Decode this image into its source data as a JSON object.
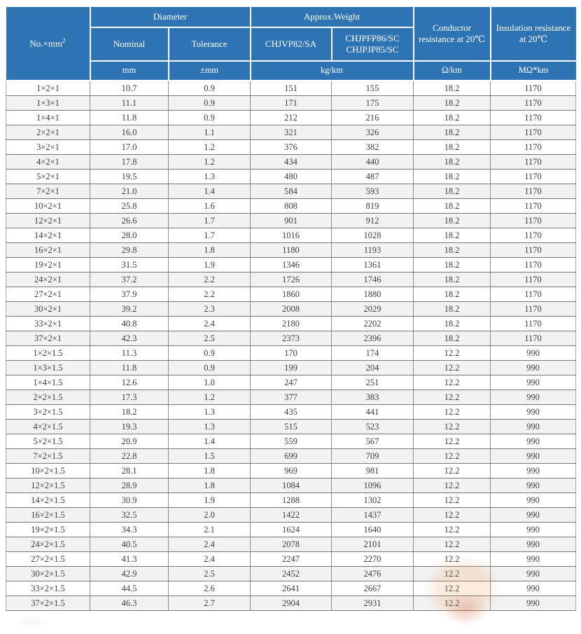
{
  "colors": {
    "header_bg": "#2e74b5",
    "header_text": "#ffffff",
    "stripe": "#f2f2f2",
    "grid": "#8b8b8b",
    "header_rule": "#1e5fa3",
    "text": "#3d3d3d"
  },
  "table": {
    "header": {
      "col0_base": "No.×mm",
      "col0_sup": "2",
      "diameter_group": "Diameter",
      "weight_group": "Approx.Weight",
      "conductor": "Conductor resistance at 20℃",
      "insulation": "Insulation resistance at 20℃",
      "nominal": "Nominal",
      "tolerance": "Tolerance",
      "model1": "CHJVP82/SA",
      "model2_line1": "CHJPFP86/SC",
      "model2_line2": "CHJPJP85/SC"
    },
    "units": {
      "nominal": "mm",
      "tolerance": "±mm",
      "weight": "kg/km",
      "conductor": "Ω/km",
      "insulation": "MΩ*km"
    },
    "rows": [
      {
        "size": "1×2×1",
        "nominal": "10.7",
        "tolerance": "0.9",
        "weight1": "151",
        "weight2": "155",
        "conductor": "18.2",
        "insulation": "1170"
      },
      {
        "size": "1×3×1",
        "nominal": "11.1",
        "tolerance": "0.9",
        "weight1": "171",
        "weight2": "175",
        "conductor": "18.2",
        "insulation": "1170"
      },
      {
        "size": "1×4×1",
        "nominal": "11.8",
        "tolerance": "0.9",
        "weight1": "212",
        "weight2": "216",
        "conductor": "18.2",
        "insulation": "1170"
      },
      {
        "size": "2×2×1",
        "nominal": "16.0",
        "tolerance": "1.1",
        "weight1": "321",
        "weight2": "326",
        "conductor": "18.2",
        "insulation": "1170"
      },
      {
        "size": "3×2×1",
        "nominal": "17.0",
        "tolerance": "1.2",
        "weight1": "376",
        "weight2": "382",
        "conductor": "18.2",
        "insulation": "1170"
      },
      {
        "size": "4×2×1",
        "nominal": "17.8",
        "tolerance": "1.2",
        "weight1": "434",
        "weight2": "440",
        "conductor": "18.2",
        "insulation": "1170"
      },
      {
        "size": "5×2×1",
        "nominal": "19.5",
        "tolerance": "1.3",
        "weight1": "480",
        "weight2": "487",
        "conductor": "18.2",
        "insulation": "1170"
      },
      {
        "size": "7×2×1",
        "nominal": "21.0",
        "tolerance": "1.4",
        "weight1": "584",
        "weight2": "593",
        "conductor": "18.2",
        "insulation": "1170"
      },
      {
        "size": "10×2×1",
        "nominal": "25.8",
        "tolerance": "1.6",
        "weight1": "808",
        "weight2": "819",
        "conductor": "18.2",
        "insulation": "1170"
      },
      {
        "size": "12×2×1",
        "nominal": "26.6",
        "tolerance": "1.7",
        "weight1": "901",
        "weight2": "912",
        "conductor": "18.2",
        "insulation": "1170"
      },
      {
        "size": "14×2×1",
        "nominal": "28.0",
        "tolerance": "1.7",
        "weight1": "1016",
        "weight2": "1028",
        "conductor": "18.2",
        "insulation": "1170"
      },
      {
        "size": "16×2×1",
        "nominal": "29.8",
        "tolerance": "1.8",
        "weight1": "1180",
        "weight2": "1193",
        "conductor": "18.2",
        "insulation": "1170"
      },
      {
        "size": "19×2×1",
        "nominal": "31.5",
        "tolerance": "1.9",
        "weight1": "1346",
        "weight2": "1361",
        "conductor": "18.2",
        "insulation": "1170"
      },
      {
        "size": "24×2×1",
        "nominal": "37.2",
        "tolerance": "2.2",
        "weight1": "1726",
        "weight2": "1746",
        "conductor": "18.2",
        "insulation": "1170"
      },
      {
        "size": "27×2×1",
        "nominal": "37.9",
        "tolerance": "2.2",
        "weight1": "1860",
        "weight2": "1880",
        "conductor": "18.2",
        "insulation": "1170"
      },
      {
        "size": "30×2×1",
        "nominal": "39.2",
        "tolerance": "2.3",
        "weight1": "2008",
        "weight2": "2029",
        "conductor": "18.2",
        "insulation": "1170"
      },
      {
        "size": "33×2×1",
        "nominal": "40.8",
        "tolerance": "2.4",
        "weight1": "2180",
        "weight2": "2202",
        "conductor": "18.2",
        "insulation": "1170"
      },
      {
        "size": "37×2×1",
        "nominal": "42.3",
        "tolerance": "2.5",
        "weight1": "2373",
        "weight2": "2396",
        "conductor": "18.2",
        "insulation": "1170"
      },
      {
        "size": "1×2×1.5",
        "nominal": "11.3",
        "tolerance": "0.9",
        "weight1": "170",
        "weight2": "174",
        "conductor": "12.2",
        "insulation": "990"
      },
      {
        "size": "1×3×1.5",
        "nominal": "11.8",
        "tolerance": "0.9",
        "weight1": "199",
        "weight2": "204",
        "conductor": "12.2",
        "insulation": "990"
      },
      {
        "size": "1×4×1.5",
        "nominal": "12.6",
        "tolerance": "1.0",
        "weight1": "247",
        "weight2": "251",
        "conductor": "12.2",
        "insulation": "990"
      },
      {
        "size": "2×2×1.5",
        "nominal": "17.3",
        "tolerance": "1.2",
        "weight1": "377",
        "weight2": "383",
        "conductor": "12.2",
        "insulation": "990"
      },
      {
        "size": "3×2×1.5",
        "nominal": "18.2",
        "tolerance": "1.3",
        "weight1": "435",
        "weight2": "441",
        "conductor": "12.2",
        "insulation": "990"
      },
      {
        "size": "4×2×1.5",
        "nominal": "19.3",
        "tolerance": "1.3",
        "weight1": "515",
        "weight2": "523",
        "conductor": "12.2",
        "insulation": "990"
      },
      {
        "size": "5×2×1.5",
        "nominal": "20.9",
        "tolerance": "1.4",
        "weight1": "559",
        "weight2": "567",
        "conductor": "12.2",
        "insulation": "990"
      },
      {
        "size": "7×2×1.5",
        "nominal": "22.8",
        "tolerance": "1.5",
        "weight1": "699",
        "weight2": "709",
        "conductor": "12.2",
        "insulation": "990"
      },
      {
        "size": "10×2×1.5",
        "nominal": "28.1",
        "tolerance": "1.8",
        "weight1": "969",
        "weight2": "981",
        "conductor": "12.2",
        "insulation": "990"
      },
      {
        "size": "12×2×1.5",
        "nominal": "28.9",
        "tolerance": "1.8",
        "weight1": "1084",
        "weight2": "1096",
        "conductor": "12.2",
        "insulation": "990"
      },
      {
        "size": "14×2×1.5",
        "nominal": "30.9",
        "tolerance": "1.9",
        "weight1": "1288",
        "weight2": "1302",
        "conductor": "12.2",
        "insulation": "990"
      },
      {
        "size": "16×2×1.5",
        "nominal": "32.5",
        "tolerance": "2.0",
        "weight1": "1422",
        "weight2": "1437",
        "conductor": "12.2",
        "insulation": "990"
      },
      {
        "size": "19×2×1.5",
        "nominal": "34.3",
        "tolerance": "2.1",
        "weight1": "1624",
        "weight2": "1640",
        "conductor": "12.2",
        "insulation": "990"
      },
      {
        "size": "24×2×1.5",
        "nominal": "40.5",
        "tolerance": "2.4",
        "weight1": "2078",
        "weight2": "2101",
        "conductor": "12.2",
        "insulation": "990"
      },
      {
        "size": "27×2×1.5",
        "nominal": "41.3",
        "tolerance": "2.4",
        "weight1": "2247",
        "weight2": "2270",
        "conductor": "12.2",
        "insulation": "990"
      },
      {
        "size": "30×2×1.5",
        "nominal": "42.9",
        "tolerance": "2.5",
        "weight1": "2452",
        "weight2": "2476",
        "conductor": "12.2",
        "insulation": "990"
      },
      {
        "size": "33×2×1.5",
        "nominal": "44.5",
        "tolerance": "2.6",
        "weight1": "2641",
        "weight2": "2667",
        "conductor": "12.2",
        "insulation": "990"
      },
      {
        "size": "37×2×1.5",
        "nominal": "46.3",
        "tolerance": "2.7",
        "weight1": "2904",
        "weight2": "2931",
        "conductor": "12.2",
        "insulation": "990"
      }
    ]
  }
}
